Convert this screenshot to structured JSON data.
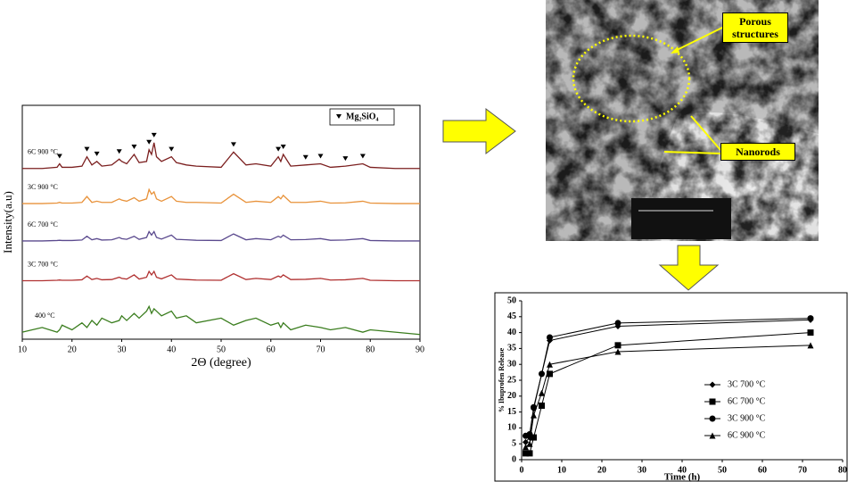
{
  "chart_data": [
    {
      "type": "line",
      "xlabel": "2Θ (degree)",
      "ylabel": "Intensity(a.u)",
      "xlim": [
        10,
        90
      ],
      "xticks": [
        10,
        20,
        30,
        40,
        50,
        60,
        70,
        80,
        90
      ],
      "ylim": [
        0,
        100
      ],
      "x": [
        10,
        14,
        17,
        17.5,
        18,
        20,
        22,
        23,
        24,
        25,
        26,
        28,
        29.5,
        30,
        31,
        32.5,
        33.5,
        35,
        35.5,
        36,
        36.5,
        37,
        38,
        40,
        41,
        43,
        45,
        50,
        52.5,
        55,
        57,
        60,
        61.5,
        62,
        62.5,
        64,
        67,
        70,
        72,
        75,
        78.5,
        80,
        85,
        90
      ],
      "series": [
        {
          "name": "6C 900 °C",
          "color": "#7b1f1f",
          "values": [
            73,
            73,
            73.5,
            75,
            73.5,
            73.5,
            74,
            78,
            74.5,
            76,
            74,
            74.5,
            77,
            76,
            75,
            79,
            75.5,
            76,
            81,
            79,
            84,
            78,
            76,
            78,
            75.5,
            74.5,
            74,
            73.5,
            80,
            74.5,
            75,
            74,
            78,
            76,
            79,
            74,
            74.5,
            75,
            73.5,
            74,
            75,
            73.5,
            73,
            73
          ]
        },
        {
          "name": "3C 900 °C",
          "color": "#e8923a",
          "values": [
            58,
            58,
            58.2,
            58.5,
            58.2,
            58.2,
            58.5,
            61,
            58.5,
            59,
            58.5,
            58.5,
            60,
            59.5,
            59,
            60.5,
            59,
            60,
            64,
            62,
            63,
            60,
            59,
            61,
            59,
            58.5,
            58.5,
            58.2,
            62,
            58.5,
            59,
            58.5,
            61,
            60,
            61.5,
            58.5,
            58.5,
            59,
            58.2,
            58.3,
            59,
            58.2,
            58,
            58
          ]
        },
        {
          "name": "6C 700 °C",
          "color": "#5b4a8e",
          "values": [
            42,
            42,
            42.2,
            42.3,
            42.2,
            42.2,
            42.4,
            44,
            42.5,
            43,
            42.4,
            42.5,
            43.5,
            43,
            42.7,
            44,
            42.7,
            43.5,
            46,
            44.5,
            46,
            43.5,
            42.8,
            44.5,
            42.7,
            42.5,
            42.3,
            42.2,
            45,
            42.5,
            43,
            42.5,
            44,
            43.5,
            44.5,
            42.5,
            42.6,
            43,
            42.3,
            42.4,
            43,
            42.2,
            42,
            42
          ]
        },
        {
          "name": "3C 700 °C",
          "color": "#b03030",
          "values": [
            25,
            25,
            25.2,
            25.3,
            25.2,
            25.2,
            25.4,
            27,
            25.5,
            26,
            25.4,
            25.5,
            26.5,
            26,
            25.7,
            27.5,
            25.7,
            26.5,
            29,
            27.5,
            29,
            26.5,
            25.8,
            27.5,
            25.7,
            25.5,
            25.3,
            25.2,
            28,
            25.5,
            26,
            25.5,
            27,
            26.5,
            27.5,
            25.5,
            25.6,
            26,
            25.3,
            25.4,
            26,
            25.2,
            25,
            25
          ]
        },
        {
          "name": "400 °C",
          "color": "#3a7d1e",
          "values": [
            3,
            5,
            3,
            4,
            6,
            4,
            7,
            5,
            8,
            6,
            9,
            7,
            8,
            10,
            8,
            11,
            9,
            12,
            14,
            11,
            13,
            12,
            10,
            12,
            9,
            10,
            7,
            9,
            6,
            8,
            9,
            6,
            7,
            5,
            7,
            4,
            6,
            5,
            4,
            5,
            3,
            4,
            3,
            2
          ]
        }
      ],
      "markers": {
        "name": "Mg₂SiO₄",
        "x": [
          17.5,
          23,
          25,
          29.5,
          32.5,
          35.5,
          36.5,
          40,
          52.5,
          61.5,
          62.5,
          67,
          70,
          75,
          78.5
        ]
      }
    },
    {
      "type": "line",
      "xlabel": "Time (h)",
      "ylabel": "% Ibuprofen Release",
      "xlim": [
        0,
        80
      ],
      "xticks": [
        0,
        10,
        20,
        30,
        40,
        50,
        60,
        70,
        80
      ],
      "ylim": [
        0,
        50
      ],
      "yticks": [
        0,
        5,
        10,
        15,
        20,
        25,
        30,
        35,
        40,
        45,
        50
      ],
      "x": [
        1,
        2,
        3,
        5,
        7,
        24,
        72
      ],
      "series": [
        {
          "name": "3C 700 °C",
          "color": "#000000",
          "marker": "diamond",
          "values": [
            5.5,
            7,
            16,
            27,
            37.5,
            42,
            44
          ]
        },
        {
          "name": "6C 700 °C",
          "color": "#000000",
          "marker": "square",
          "values": [
            2,
            2,
            7,
            17,
            27,
            36,
            40
          ]
        },
        {
          "name": "3C 900 °C",
          "color": "#000000",
          "marker": "circle",
          "values": [
            7.5,
            8,
            16.5,
            27,
            38.5,
            43,
            44.5
          ]
        },
        {
          "name": "6C 900 °C",
          "color": "#000000",
          "marker": "triangle",
          "values": [
            4,
            5,
            14,
            21,
            30,
            34,
            36
          ]
        }
      ]
    }
  ],
  "image": {
    "annotations": [
      "Porous structures",
      "Nanorods"
    ]
  }
}
